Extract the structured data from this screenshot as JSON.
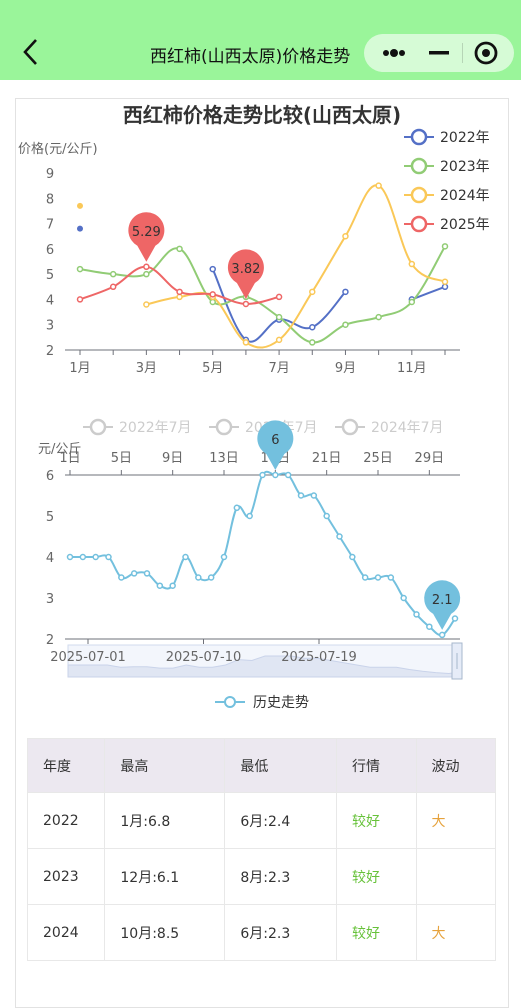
{
  "navbar": {
    "title": "西红柿(山西太原)价格走势"
  },
  "chart1": {
    "title": "西红柿价格走势比较(山西太原)",
    "ylabel": "价格(元/公斤)",
    "yticks": [
      "2",
      "3",
      "4",
      "5",
      "6",
      "7",
      "8",
      "9"
    ],
    "xticks": [
      "1月",
      "3月",
      "5月",
      "7月",
      "9月",
      "11月"
    ],
    "colors": {
      "2022": "#5470c6",
      "2023": "#91cc75",
      "2024": "#fac858",
      "2025": "#ee6666"
    }
  },
  "chart2": {
    "legend": [
      "2022年7月",
      "2023年7月",
      "2024年7月"
    ],
    "ylabel": "元/公斤",
    "yticks": [
      "2",
      "3",
      "4",
      "5",
      "6"
    ],
    "topTicks": [
      "1日",
      "5日",
      "9日",
      "13日",
      "17日",
      "21日",
      "25日",
      "29日"
    ],
    "bottomTicks": [
      "2025-07-01",
      "2025-07-10",
      "2025-07-19"
    ],
    "series_legend": "历史走势",
    "markers": {
      "max": "6",
      "min": "2.1"
    }
  },
  "chart_data": [
    {
      "type": "line",
      "title": "西红柿价格走势比较(山西太原)",
      "ylabel": "价格(元/公斤)",
      "ylim": [
        2,
        9
      ],
      "x": [
        "1月",
        "2月",
        "3月",
        "4月",
        "5月",
        "6月",
        "7月",
        "8月",
        "9月",
        "10月",
        "11月",
        "12月"
      ],
      "legend_position": "top-right",
      "series": [
        {
          "name": "2022年",
          "values": [
            6.8,
            null,
            null,
            null,
            5.2,
            2.4,
            3.2,
            2.9,
            4.3,
            null,
            4.0,
            4.5
          ]
        },
        {
          "name": "2023年",
          "values": [
            5.2,
            5.0,
            5.0,
            6.0,
            3.9,
            4.1,
            3.3,
            2.3,
            3.0,
            3.3,
            3.9,
            6.1
          ]
        },
        {
          "name": "2024年",
          "values": [
            7.7,
            null,
            3.8,
            4.1,
            4.1,
            2.3,
            2.4,
            4.3,
            6.5,
            8.5,
            5.4,
            4.7
          ]
        },
        {
          "name": "2025年",
          "values": [
            4.0,
            4.5,
            5.29,
            4.3,
            4.2,
            3.82,
            4.1,
            null,
            null,
            null,
            null,
            null
          ]
        }
      ],
      "annotations": [
        "5.29",
        "3.82"
      ]
    },
    {
      "type": "line",
      "ylabel": "元/公斤",
      "ylim": [
        2,
        6
      ],
      "legend": [
        "历史走势"
      ],
      "x": [
        "2025-07-01",
        "2025-07-02",
        "2025-07-03",
        "2025-07-04",
        "2025-07-05",
        "2025-07-06",
        "2025-07-07",
        "2025-07-08",
        "2025-07-09",
        "2025-07-10",
        "2025-07-11",
        "2025-07-12",
        "2025-07-13",
        "2025-07-14",
        "2025-07-15",
        "2025-07-16",
        "2025-07-17",
        "2025-07-18",
        "2025-07-19",
        "2025-07-20",
        "2025-07-21",
        "2025-07-22",
        "2025-07-23",
        "2025-07-24",
        "2025-07-25",
        "2025-07-26",
        "2025-07-27",
        "2025-07-28",
        "2025-07-29",
        "2025-07-30",
        "2025-07-31"
      ],
      "values": [
        4.0,
        4.0,
        4.0,
        4.0,
        3.5,
        3.6,
        3.6,
        3.3,
        3.3,
        4.0,
        3.5,
        3.5,
        4.0,
        5.2,
        5.0,
        6.0,
        6.0,
        6.0,
        5.5,
        5.5,
        5.0,
        4.5,
        4.0,
        3.5,
        3.5,
        3.5,
        3.0,
        2.6,
        2.3,
        2.1,
        2.5
      ],
      "annotations": [
        "6",
        "2.1"
      ]
    }
  ],
  "table": {
    "headers": [
      "年度",
      "最高",
      "最低",
      "行情",
      "波动"
    ],
    "rows": [
      [
        "2022",
        "1月:6.8",
        "6月:2.4",
        "较好",
        "大"
      ],
      [
        "2023",
        "12月:6.1",
        "8月:2.3",
        "较好",
        ""
      ],
      [
        "2024",
        "10月:8.5",
        "6月:2.3",
        "较好",
        "大"
      ]
    ]
  }
}
